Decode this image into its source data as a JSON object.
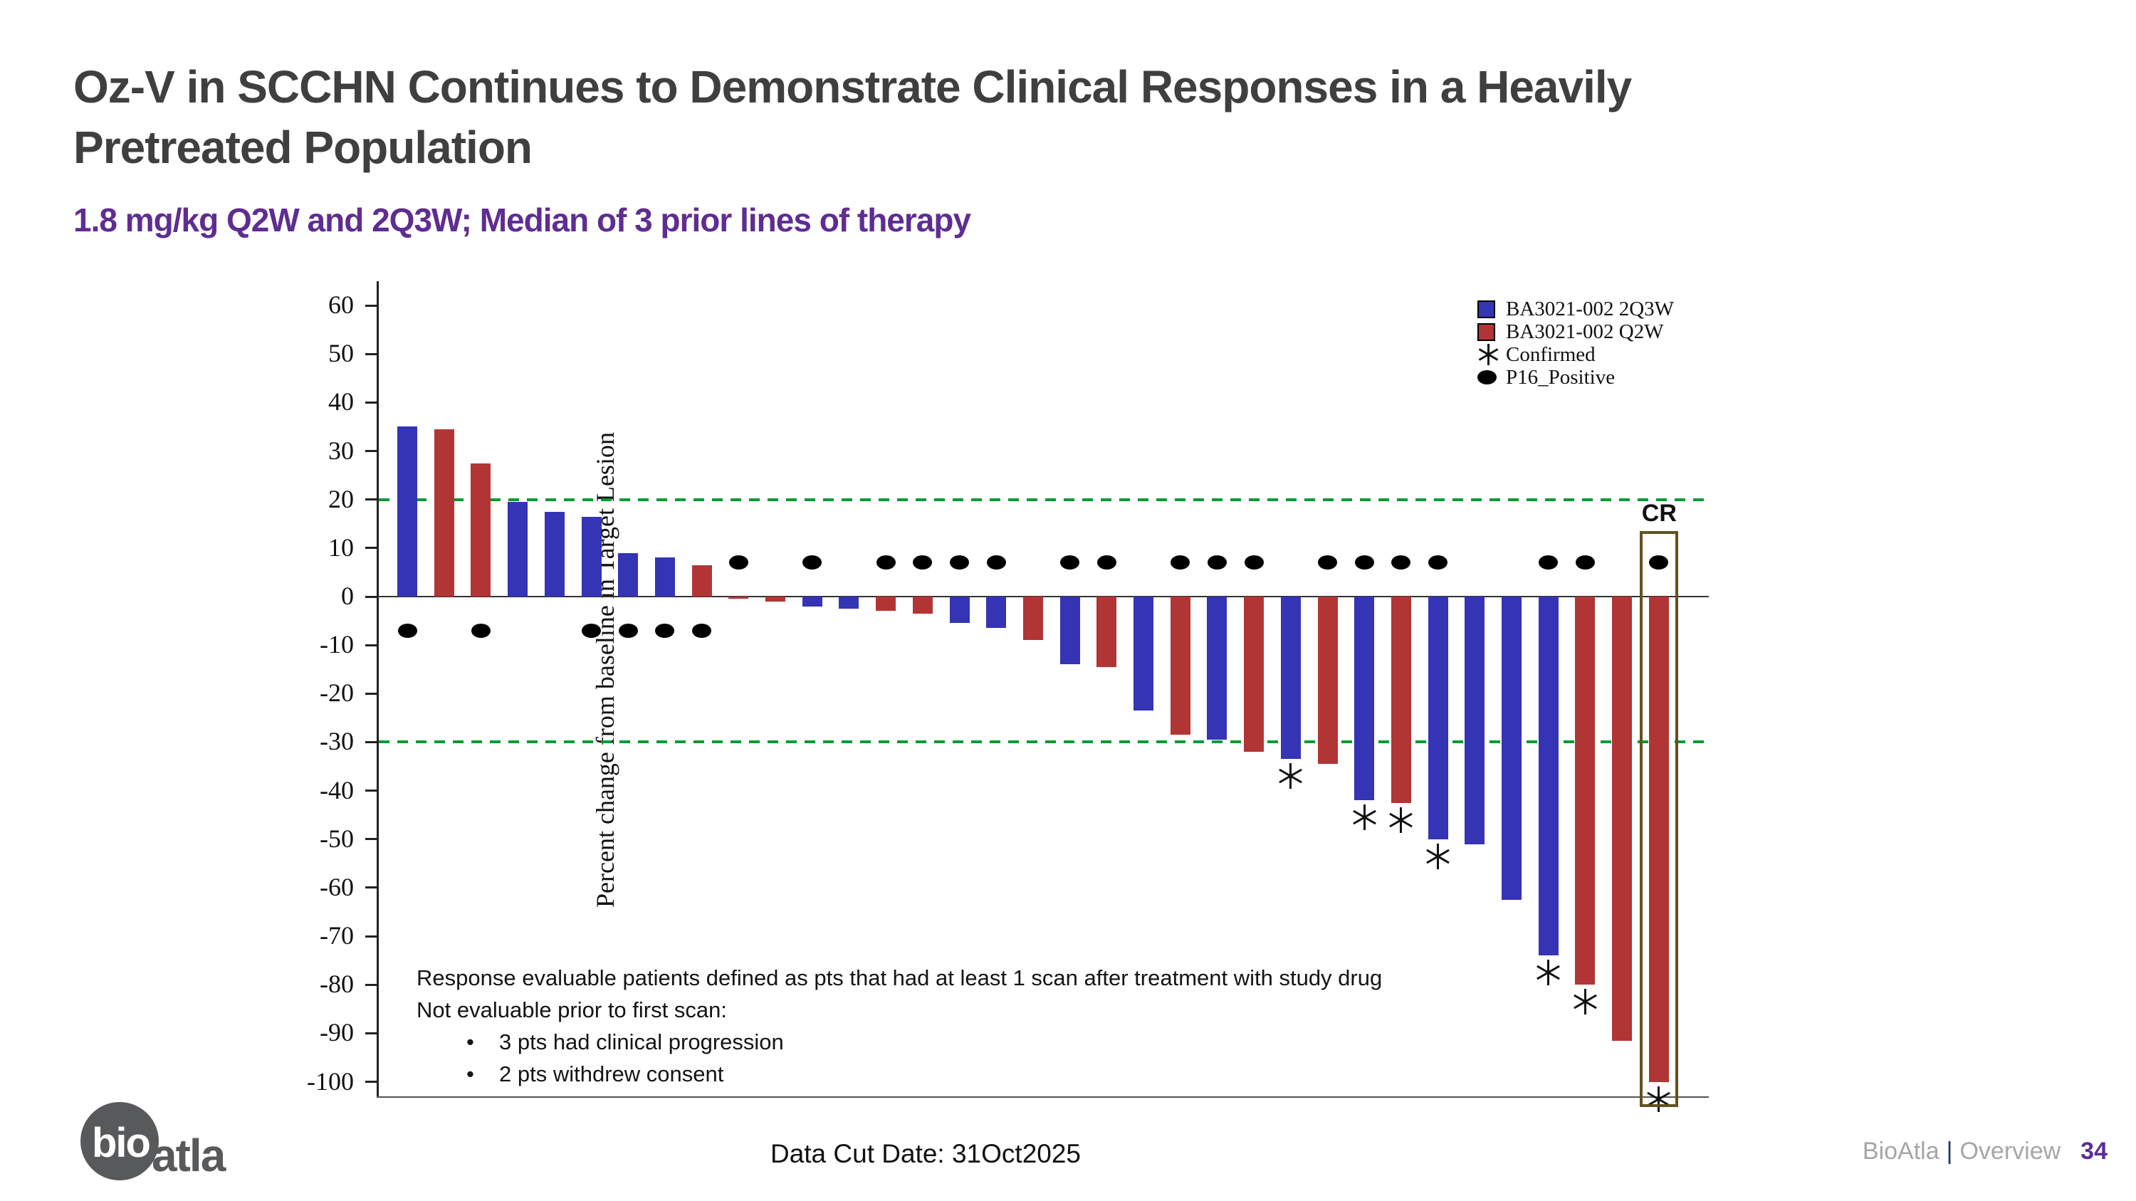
{
  "slide": {
    "title_line1": "Oz-V in SCCHN Continues to Demonstrate Clinical Responses in a Heavily",
    "title_line2": "Pretreated Population",
    "subtitle": "1.8 mg/kg Q2W and 2Q3W; Median of 3 prior lines of therapy",
    "data_cut": "Data Cut Date: 31Oct2025",
    "footer": {
      "brand": "BioAtla",
      "separator": "|",
      "section": "Overview",
      "page_number": "34"
    },
    "logo": {
      "bio": "bio",
      "atla": "atla"
    }
  },
  "footnote": {
    "line1": "Response evaluable patients defined as pts that had at least 1 scan after treatment with study drug",
    "line2": "Not evaluable prior to first scan:",
    "bullets": [
      "3 pts had clinical progression",
      "2 pts withdrew consent"
    ]
  },
  "chart_data": {
    "type": "bar",
    "title": "",
    "xlabel": "",
    "ylabel": "Percent change from baseline in Target Lesion",
    "ylim": [
      -103,
      65
    ],
    "yticks": [
      60,
      50,
      40,
      30,
      20,
      10,
      0,
      -10,
      -20,
      -30,
      -40,
      -50,
      -60,
      -70,
      -80,
      -90,
      -100
    ],
    "grid": false,
    "legend_position": "top-right",
    "legend": [
      {
        "swatch": "square-blue",
        "label": "BA3021-002 2Q3W"
      },
      {
        "swatch": "square-red",
        "label": "BA3021-002 Q2W"
      },
      {
        "swatch": "asterisk",
        "label": "Confirmed"
      },
      {
        "swatch": "dot",
        "label": "P16_Positive"
      }
    ],
    "colors": {
      "arm_2Q3W": "#3434b4",
      "arm_Q2W": "#b23535",
      "reference_line": "#009a33",
      "cr_box": "#63511f"
    },
    "reference_lines": [
      20,
      -30
    ],
    "marker_value_offset": 7,
    "cr_label": "CR",
    "bars": [
      {
        "value": 35,
        "arm": "2Q3W",
        "p16": true,
        "confirmed": false,
        "cr": false
      },
      {
        "value": 34.5,
        "arm": "Q2W",
        "p16": false,
        "confirmed": false,
        "cr": false
      },
      {
        "value": 27.5,
        "arm": "Q2W",
        "p16": true,
        "confirmed": false,
        "cr": false
      },
      {
        "value": 19.5,
        "arm": "2Q3W",
        "p16": false,
        "confirmed": false,
        "cr": false
      },
      {
        "value": 17.5,
        "arm": "2Q3W",
        "p16": false,
        "confirmed": false,
        "cr": false
      },
      {
        "value": 16.5,
        "arm": "2Q3W",
        "p16": true,
        "confirmed": false,
        "cr": false
      },
      {
        "value": 9,
        "arm": "2Q3W",
        "p16": true,
        "confirmed": false,
        "cr": false
      },
      {
        "value": 8,
        "arm": "2Q3W",
        "p16": true,
        "confirmed": false,
        "cr": false
      },
      {
        "value": 6.5,
        "arm": "Q2W",
        "p16": true,
        "confirmed": false,
        "cr": false
      },
      {
        "value": -0.5,
        "arm": "Q2W",
        "p16": true,
        "confirmed": false,
        "cr": false
      },
      {
        "value": -1,
        "arm": "Q2W",
        "p16": false,
        "confirmed": false,
        "cr": false
      },
      {
        "value": -2,
        "arm": "2Q3W",
        "p16": true,
        "confirmed": false,
        "cr": false
      },
      {
        "value": -2.5,
        "arm": "2Q3W",
        "p16": false,
        "confirmed": false,
        "cr": false
      },
      {
        "value": -3,
        "arm": "Q2W",
        "p16": true,
        "confirmed": false,
        "cr": false
      },
      {
        "value": -3.5,
        "arm": "Q2W",
        "p16": true,
        "confirmed": false,
        "cr": false
      },
      {
        "value": -5.5,
        "arm": "2Q3W",
        "p16": true,
        "confirmed": false,
        "cr": false
      },
      {
        "value": -6.5,
        "arm": "2Q3W",
        "p16": true,
        "confirmed": false,
        "cr": false
      },
      {
        "value": -9,
        "arm": "Q2W",
        "p16": false,
        "confirmed": false,
        "cr": false
      },
      {
        "value": -14,
        "arm": "2Q3W",
        "p16": true,
        "confirmed": false,
        "cr": false
      },
      {
        "value": -14.5,
        "arm": "Q2W",
        "p16": true,
        "confirmed": false,
        "cr": false
      },
      {
        "value": -23.5,
        "arm": "2Q3W",
        "p16": false,
        "confirmed": false,
        "cr": false
      },
      {
        "value": -28.5,
        "arm": "Q2W",
        "p16": true,
        "confirmed": false,
        "cr": false
      },
      {
        "value": -29.5,
        "arm": "2Q3W",
        "p16": true,
        "confirmed": false,
        "cr": false
      },
      {
        "value": -32,
        "arm": "Q2W",
        "p16": true,
        "confirmed": false,
        "cr": false
      },
      {
        "value": -33.5,
        "arm": "2Q3W",
        "p16": false,
        "confirmed": true,
        "cr": false
      },
      {
        "value": -34.5,
        "arm": "Q2W",
        "p16": true,
        "confirmed": false,
        "cr": false
      },
      {
        "value": -42,
        "arm": "2Q3W",
        "p16": true,
        "confirmed": true,
        "cr": false
      },
      {
        "value": -42.5,
        "arm": "Q2W",
        "p16": true,
        "confirmed": true,
        "cr": false
      },
      {
        "value": -50,
        "arm": "2Q3W",
        "p16": true,
        "confirmed": true,
        "cr": false
      },
      {
        "value": -51,
        "arm": "2Q3W",
        "p16": false,
        "confirmed": false,
        "cr": false
      },
      {
        "value": -62.5,
        "arm": "2Q3W",
        "p16": false,
        "confirmed": false,
        "cr": false
      },
      {
        "value": -74,
        "arm": "2Q3W",
        "p16": true,
        "confirmed": true,
        "cr": false
      },
      {
        "value": -80,
        "arm": "Q2W",
        "p16": true,
        "confirmed": true,
        "cr": false
      },
      {
        "value": -91.5,
        "arm": "Q2W",
        "p16": false,
        "confirmed": false,
        "cr": false
      },
      {
        "value": -100,
        "arm": "Q2W",
        "p16": true,
        "confirmed": true,
        "cr": true
      }
    ]
  }
}
